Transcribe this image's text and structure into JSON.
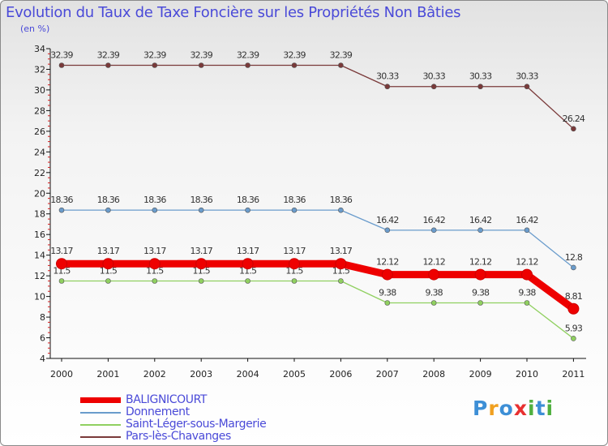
{
  "chart_data": {
    "type": "line",
    "title": "Evolution du Taux de Taxe Foncière sur les Propriétés Non Bâties",
    "ylabel": "(en %)",
    "xlabel": "",
    "ylim": [
      4,
      34
    ],
    "yticks": [
      "4",
      "6",
      "8",
      "10",
      "12",
      "14",
      "16",
      "18",
      "20",
      "22",
      "24",
      "26",
      "28",
      "30",
      "32",
      "34"
    ],
    "categories": [
      "2000",
      "2001",
      "2002",
      "2003",
      "2004",
      "2005",
      "2006",
      "2007",
      "2008",
      "2009",
      "2010",
      "2011"
    ],
    "series": [
      {
        "name": "Pars-lès-Chavanges",
        "color": "#7a3a3a",
        "values": [
          32.39,
          32.39,
          32.39,
          32.39,
          32.39,
          32.39,
          32.39,
          30.33,
          30.33,
          30.33,
          30.33,
          26.24
        ],
        "labels": [
          "32.39",
          "32.39",
          "32.39",
          "32.39",
          "32.39",
          "32.39",
          "32.39",
          "30.33",
          "30.33",
          "30.33",
          "30.33",
          "26.24"
        ]
      },
      {
        "name": "Donnement",
        "color": "#6a9ccc",
        "values": [
          18.36,
          18.36,
          18.36,
          18.36,
          18.36,
          18.36,
          18.36,
          16.42,
          16.42,
          16.42,
          16.42,
          12.8
        ],
        "labels": [
          "18.36",
          "18.36",
          "18.36",
          "18.36",
          "18.36",
          "18.36",
          "18.36",
          "16.42",
          "16.42",
          "16.42",
          "16.42",
          "12.8"
        ]
      },
      {
        "name": "Saint-Léger-sous-Margerie",
        "color": "#90d060",
        "values": [
          11.5,
          11.5,
          11.5,
          11.5,
          11.5,
          11.5,
          11.5,
          9.38,
          9.38,
          9.38,
          9.38,
          5.93
        ],
        "labels": [
          "11.5",
          "11.5",
          "11.5",
          "11.5",
          "11.5",
          "11.5",
          "11.5",
          "9.38",
          "9.38",
          "9.38",
          "9.38",
          "5.93"
        ]
      },
      {
        "name": "BALIGNICOURT",
        "color": "#ee0000",
        "values": [
          13.17,
          13.17,
          13.17,
          13.17,
          13.17,
          13.17,
          13.17,
          12.12,
          12.12,
          12.12,
          12.12,
          8.81
        ],
        "labels": [
          "13.17",
          "13.17",
          "13.17",
          "13.17",
          "13.17",
          "13.17",
          "13.17",
          "12.12",
          "12.12",
          "12.12",
          "12.12",
          "8.81"
        ]
      }
    ],
    "legend": [
      "BALIGNICOURT",
      "Donnement",
      "Saint-Léger-sous-Margerie",
      "Pars-lès-Chavanges"
    ],
    "legend_position": "bottom-left",
    "grid": false
  },
  "logo": {
    "letters": [
      "P",
      "r",
      "o",
      "x",
      "i",
      "t",
      "i"
    ]
  }
}
